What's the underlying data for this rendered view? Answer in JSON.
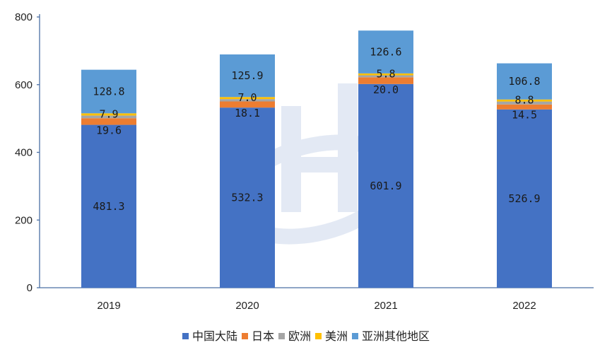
{
  "chart_data": {
    "type": "bar",
    "stacked": true,
    "categories": [
      "2019",
      "2020",
      "2021",
      "2022"
    ],
    "series": [
      {
        "name": "中国大陆",
        "color": "#4472C4",
        "values": [
          481.3,
          532.3,
          601.9,
          526.9
        ],
        "labels": [
          "481.3",
          "532.3",
          "601.9",
          "526.9"
        ]
      },
      {
        "name": "日本",
        "color": "#ED7D31",
        "values": [
          19.6,
          18.1,
          20.0,
          14.5
        ],
        "labels": [
          "19.6",
          "18.1",
          "20.0",
          "14.5"
        ]
      },
      {
        "name": "欧洲",
        "color": "#A5A5A5",
        "values": [
          7.9,
          7.0,
          5.8,
          8.8
        ],
        "labels": [
          "7.9",
          "7.0",
          "5.8",
          "8.8"
        ]
      },
      {
        "name": "美洲",
        "color": "#FFC000",
        "values": [
          6.5,
          6.0,
          5.5,
          6.0
        ],
        "labels": [
          "",
          "",
          "",
          ""
        ]
      },
      {
        "name": "亚洲其他地区",
        "color": "#5B9BD5",
        "values": [
          128.8,
          125.9,
          126.6,
          106.8
        ],
        "labels": [
          "128.8",
          "125.9",
          "126.6",
          "106.8"
        ]
      }
    ],
    "ylim": [
      0,
      800
    ],
    "yticks": [
      0,
      200,
      400,
      600,
      800
    ],
    "title": "",
    "xlabel": "",
    "ylabel": "",
    "legend_position": "bottom"
  }
}
